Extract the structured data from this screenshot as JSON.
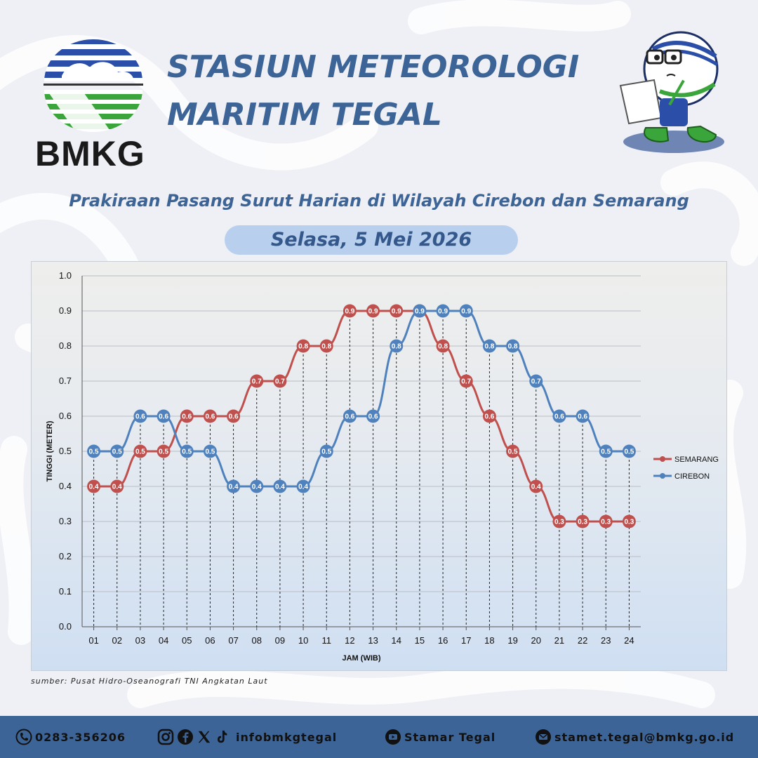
{
  "header": {
    "logo_text": "BMKG",
    "title_line1": "STASIUN METEOROLOGI",
    "title_line2": "MARITIM TEGAL",
    "subtitle": "Prakiraan Pasang Surut Harian di Wilayah Cirebon dan Semarang",
    "date": "Selasa, 5 Mei 2026"
  },
  "chart_data": {
    "type": "line",
    "x": [
      "01",
      "02",
      "03",
      "04",
      "05",
      "06",
      "07",
      "08",
      "09",
      "10",
      "11",
      "12",
      "13",
      "14",
      "15",
      "16",
      "17",
      "18",
      "19",
      "20",
      "21",
      "22",
      "23",
      "24"
    ],
    "series": [
      {
        "name": "SEMARANG",
        "color": "#c0504d",
        "values": [
          0.4,
          0.4,
          0.5,
          0.5,
          0.6,
          0.6,
          0.6,
          0.7,
          0.7,
          0.8,
          0.8,
          0.9,
          0.9,
          0.9,
          0.9,
          0.8,
          0.7,
          0.6,
          0.5,
          0.4,
          0.3,
          0.3,
          0.3,
          0.3
        ]
      },
      {
        "name": "CIREBON",
        "color": "#4f81bd",
        "values": [
          0.5,
          0.5,
          0.6,
          0.6,
          0.5,
          0.5,
          0.4,
          0.4,
          0.4,
          0.4,
          0.5,
          0.6,
          0.6,
          0.8,
          0.9,
          0.9,
          0.9,
          0.8,
          0.8,
          0.7,
          0.6,
          0.6,
          0.5,
          0.5
        ]
      }
    ],
    "point_labels": {
      "SEMARANG": [
        "0.4",
        "0.4",
        "0.5",
        "0.5",
        "0.6",
        "0.6",
        "0.6",
        "0.7",
        "0.7",
        "0.8",
        "0.8",
        "0.9",
        "0.9",
        "0.9",
        "",
        "0.8",
        "0.7",
        "0.6",
        "0.5",
        "0.4",
        "0.3",
        "0.3",
        "0.3",
        "0.3"
      ],
      "CIREBON": [
        "0.5",
        "0.5",
        "0.6",
        "0.6",
        "0.5",
        "0.5",
        "0.4",
        "0.4",
        "0.4",
        "0.4",
        "0.5",
        "0.6",
        "0.6",
        "0.8",
        "0.9",
        "0.9",
        "0.9",
        "0.8",
        "0.8",
        "0.7",
        "0.6",
        "0.6",
        "0.5",
        "0.5"
      ]
    },
    "xlabel": "JAM (WIB)",
    "ylabel": "TINGGI (METER)",
    "ylim": [
      0,
      1.0
    ],
    "yticks": [
      "0.0",
      "0.1",
      "0.2",
      "0.3",
      "0.4",
      "0.5",
      "0.6",
      "0.7",
      "0.8",
      "0.9",
      "1.0"
    ],
    "grid": true,
    "drop_lines": true,
    "legend_position": "right"
  },
  "source": "sumber: Pusat Hidro-Oseanografi TNI Angkatan Laut",
  "footer": {
    "phone": "0283-356206",
    "social": "infobmkgtegal",
    "youtube": "Stamar Tegal",
    "email": "stamet.tegal@bmkg.go.id"
  },
  "colors": {
    "brand": "#3d6497",
    "footer_bg": "#3d6497",
    "date_pill": "#b8d0ee",
    "semarang": "#c0504d",
    "cirebon": "#4f81bd"
  }
}
